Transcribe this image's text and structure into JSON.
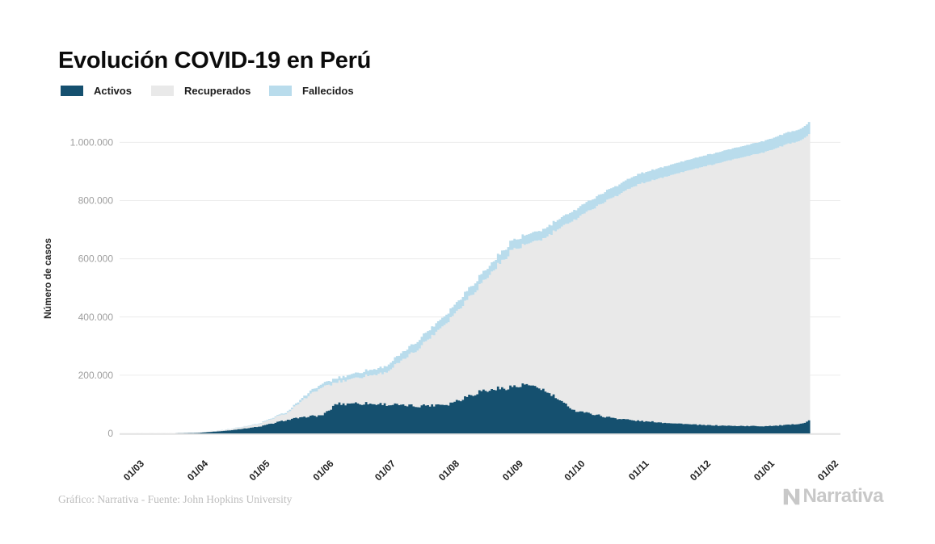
{
  "title": {
    "text": "Evolución COVID-19 en Perú"
  },
  "legend": {
    "items": [
      {
        "label": "Activos",
        "color": "#15506f"
      },
      {
        "label": "Recuperados",
        "color": "#e9e9e9"
      },
      {
        "label": "Fallecidos",
        "color": "#b9dcec"
      }
    ]
  },
  "footer": {
    "credit": "Gráfico: Narrativa - Fuente: John Hopkins University"
  },
  "logo": {
    "text": "Narrativa"
  },
  "chart_data": {
    "type": "bar",
    "subtype": "stacked-daily-bars",
    "title": "Evolución COVID-19 en Perú",
    "xlabel": "",
    "ylabel": "Número de casos",
    "ylim": [
      0,
      1100000
    ],
    "grid": "horizontal",
    "legend_position": "top-left",
    "y_ticks": [
      {
        "value": 0,
        "label": "0"
      },
      {
        "value": 200000,
        "label": "200.000"
      },
      {
        "value": 400000,
        "label": "400.000"
      },
      {
        "value": 600000,
        "label": "600.000"
      },
      {
        "value": 800000,
        "label": "800.000"
      },
      {
        "value": 1000000,
        "label": "1.000.000"
      }
    ],
    "x_tick_days": [
      0,
      31,
      61,
      92,
      122,
      153,
      184,
      214,
      245,
      275,
      306,
      337
    ],
    "x_tick_labels": [
      "01/03",
      "01/04",
      "01/05",
      "01/06",
      "01/07",
      "01/08",
      "01/09",
      "01/10",
      "01/11",
      "01/12",
      "01/01",
      "01/02"
    ],
    "days_plotted": 329,
    "series": [
      {
        "name": "Activos",
        "color": "#15506f"
      },
      {
        "name": "Recuperados",
        "color": "#e9e9e9"
      },
      {
        "name": "Fallecidos",
        "color": "#b9dcec"
      }
    ],
    "anchors": [
      {
        "day": 0,
        "activos": 0,
        "recuperados": 0,
        "fallecidos": 0
      },
      {
        "day": 20,
        "activos": 300,
        "recuperados": 100,
        "fallecidos": 20
      },
      {
        "day": 31,
        "activos": 1800,
        "recuperados": 600,
        "fallecidos": 100
      },
      {
        "day": 45,
        "activos": 9000,
        "recuperados": 3200,
        "fallecidos": 700
      },
      {
        "day": 61,
        "activos": 23000,
        "recuperados": 9000,
        "fallecidos": 1600
      },
      {
        "day": 75,
        "activos": 47000,
        "recuperados": 25000,
        "fallecidos": 4000
      },
      {
        "day": 85,
        "activos": 58000,
        "recuperados": 72000,
        "fallecidos": 10000
      },
      {
        "day": 92,
        "activos": 63000,
        "recuperados": 97000,
        "fallecidos": 12000
      },
      {
        "day": 95,
        "activos": 78000,
        "recuperados": 88000,
        "fallecidos": 13000
      },
      {
        "day": 98,
        "activos": 100000,
        "recuperados": 74000,
        "fallecidos": 14000
      },
      {
        "day": 107,
        "activos": 104000,
        "recuperados": 86000,
        "fallecidos": 16000
      },
      {
        "day": 122,
        "activos": 100000,
        "recuperados": 108000,
        "fallecidos": 21000
      },
      {
        "day": 137,
        "activos": 94000,
        "recuperados": 189000,
        "fallecidos": 29000
      },
      {
        "day": 153,
        "activos": 101000,
        "recuperados": 287000,
        "fallecidos": 30000
      },
      {
        "day": 168,
        "activos": 144000,
        "recuperados": 364000,
        "fallecidos": 31000
      },
      {
        "day": 184,
        "activos": 160000,
        "recuperados": 471000,
        "fallecidos": 32000
      },
      {
        "day": 191,
        "activos": 166000,
        "recuperados": 482000,
        "fallecidos": 32000
      },
      {
        "day": 199,
        "activos": 150000,
        "recuperados": 518000,
        "fallecidos": 32000
      },
      {
        "day": 214,
        "activos": 80000,
        "recuperados": 655000,
        "fallecidos": 33000
      },
      {
        "day": 230,
        "activos": 56000,
        "recuperados": 745000,
        "fallecidos": 34000
      },
      {
        "day": 245,
        "activos": 43000,
        "recuperados": 812000,
        "fallecidos": 35000
      },
      {
        "day": 260,
        "activos": 36000,
        "recuperados": 850000,
        "fallecidos": 36000
      },
      {
        "day": 275,
        "activos": 29000,
        "recuperados": 884000,
        "fallecidos": 37000
      },
      {
        "day": 290,
        "activos": 26000,
        "recuperados": 913000,
        "fallecidos": 38000
      },
      {
        "day": 306,
        "activos": 25000,
        "recuperados": 941000,
        "fallecidos": 39000
      },
      {
        "day": 316,
        "activos": 28000,
        "recuperados": 962000,
        "fallecidos": 39500
      },
      {
        "day": 323,
        "activos": 33000,
        "recuperados": 972000,
        "fallecidos": 40000
      },
      {
        "day": 326,
        "activos": 36000,
        "recuperados": 979000,
        "fallecidos": 40000
      },
      {
        "day": 328,
        "activos": 45000,
        "recuperados": 984000,
        "fallecidos": 41000
      }
    ]
  }
}
